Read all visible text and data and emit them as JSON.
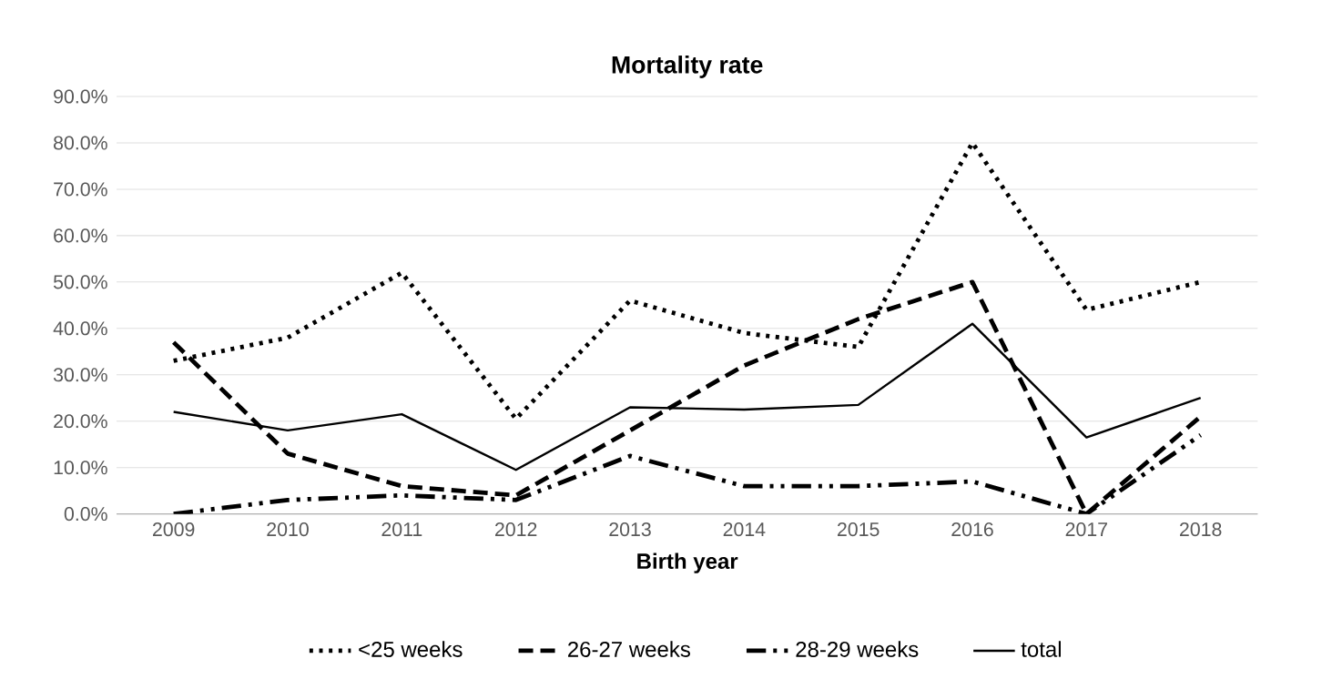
{
  "chart_data": {
    "type": "line",
    "title": "Mortality rate",
    "xlabel": "Birth year",
    "categories": [
      "2009",
      "2010",
      "2011",
      "2012",
      "2013",
      "2014",
      "2015",
      "2016",
      "2017",
      "2018"
    ],
    "series": [
      {
        "name": "<25 weeks",
        "color": "#000000",
        "line_style": "dotted",
        "values": [
          33,
          38,
          52,
          20.5,
          46,
          39,
          36,
          80,
          44,
          50
        ]
      },
      {
        "name": "26-27 weeks",
        "color": "#000000",
        "line_style": "dashed",
        "values": [
          37,
          13,
          6,
          4,
          18,
          32,
          42,
          50,
          0,
          21
        ]
      },
      {
        "name": "28-29 weeks",
        "color": "#000000",
        "line_style": "dashdot",
        "values": [
          0,
          3,
          4,
          3,
          12.5,
          6,
          6,
          7,
          0,
          17
        ]
      },
      {
        "name": "total",
        "color": "#000000",
        "line_style": "solid",
        "values": [
          22,
          18,
          21.5,
          9.5,
          23,
          22.5,
          23.5,
          41,
          16.5,
          25
        ]
      }
    ],
    "ylim": [
      0,
      90
    ],
    "yticks": [
      {
        "value": 0,
        "label": "0.0%"
      },
      {
        "value": 10,
        "label": "10.0%"
      },
      {
        "value": 20,
        "label": "20.0%"
      },
      {
        "value": 30,
        "label": "30.0%"
      },
      {
        "value": 40,
        "label": "40.0%"
      },
      {
        "value": 50,
        "label": "50.0%"
      },
      {
        "value": 60,
        "label": "60.0%"
      },
      {
        "value": 70,
        "label": "70.0%"
      },
      {
        "value": 80,
        "label": "80.0%"
      },
      {
        "value": 90,
        "label": "90.0%"
      }
    ],
    "grid": "y",
    "legend": "bottom",
    "marker": "none"
  }
}
